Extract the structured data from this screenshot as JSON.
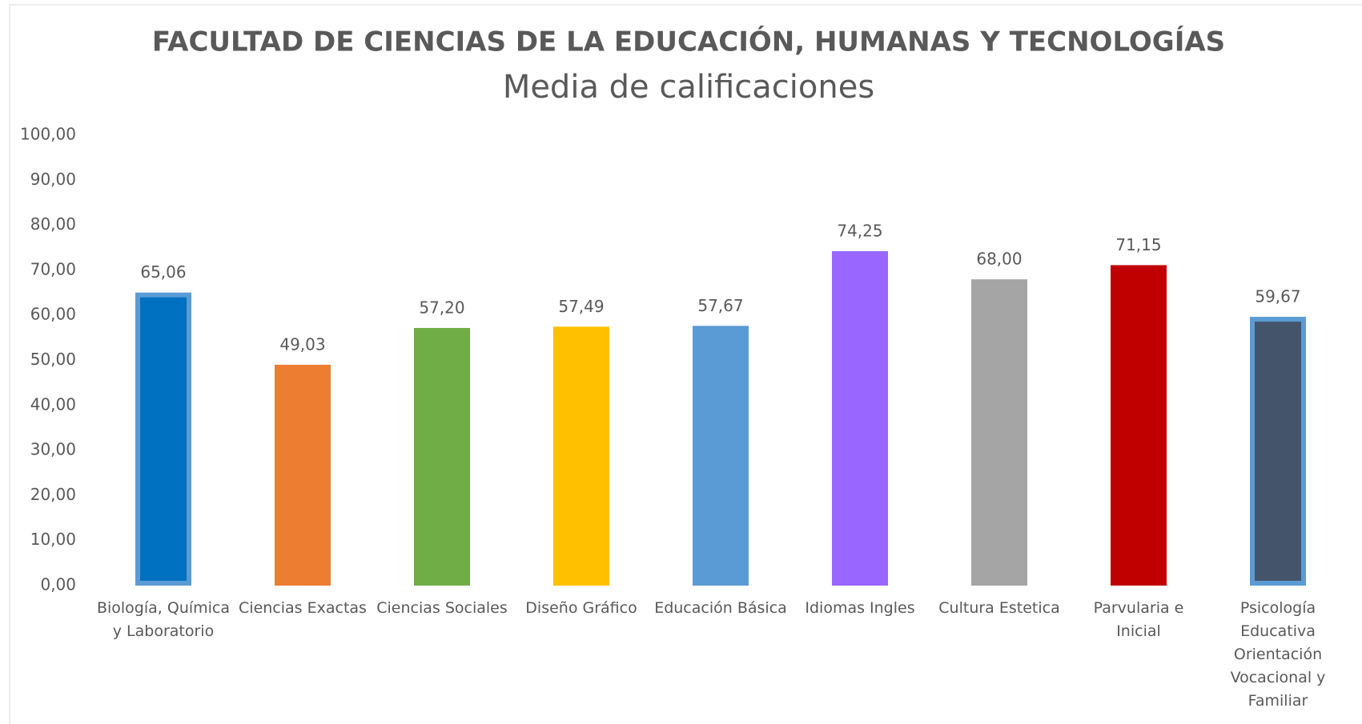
{
  "chart_data": {
    "type": "bar",
    "title": "FACULTAD DE CIENCIAS DE LA EDUCACIÓN, HUMANAS Y TECNOLOGÍAS",
    "subtitle": "Media de calificaciones",
    "categories": [
      "Biología, Química y Laboratorio",
      "Ciencias Exactas",
      "Ciencias Sociales",
      "Diseño Gráfico",
      "Educación Básica",
      "Idiomas Ingles",
      "Cultura Estetica",
      "Parvularia e Inicial",
      "Psicología Educativa Orientación Vocacional y Familiar"
    ],
    "values": [
      65.06,
      49.03,
      57.2,
      57.49,
      57.67,
      74.25,
      68.0,
      71.15,
      59.67
    ],
    "value_labels": [
      "65,06",
      "49,03",
      "57,20",
      "57,49",
      "57,67",
      "74,25",
      "68,00",
      "71,15",
      "59,67"
    ],
    "colors": [
      "#0070c0",
      "#ed7d31",
      "#70ad47",
      "#ffc000",
      "#5b9bd5",
      "#9966ff",
      "#a5a5a5",
      "#c00000",
      "#44546a"
    ],
    "edge_colors": [
      "#5b9bd5",
      null,
      null,
      null,
      null,
      null,
      null,
      null,
      "#5b9bd5"
    ],
    "ylim": [
      0,
      100
    ],
    "yticks": [
      {
        "value": 0,
        "label": "0,00"
      },
      {
        "value": 10,
        "label": "10,00"
      },
      {
        "value": 20,
        "label": "20,00"
      },
      {
        "value": 30,
        "label": "30,00"
      },
      {
        "value": 40,
        "label": "40,00"
      },
      {
        "value": 50,
        "label": "50,00"
      },
      {
        "value": 60,
        "label": "60,00"
      },
      {
        "value": 70,
        "label": "70,00"
      },
      {
        "value": 80,
        "label": "80,00"
      },
      {
        "value": 90,
        "label": "90,00"
      },
      {
        "value": 100,
        "label": "100,00"
      }
    ],
    "grid": false
  }
}
